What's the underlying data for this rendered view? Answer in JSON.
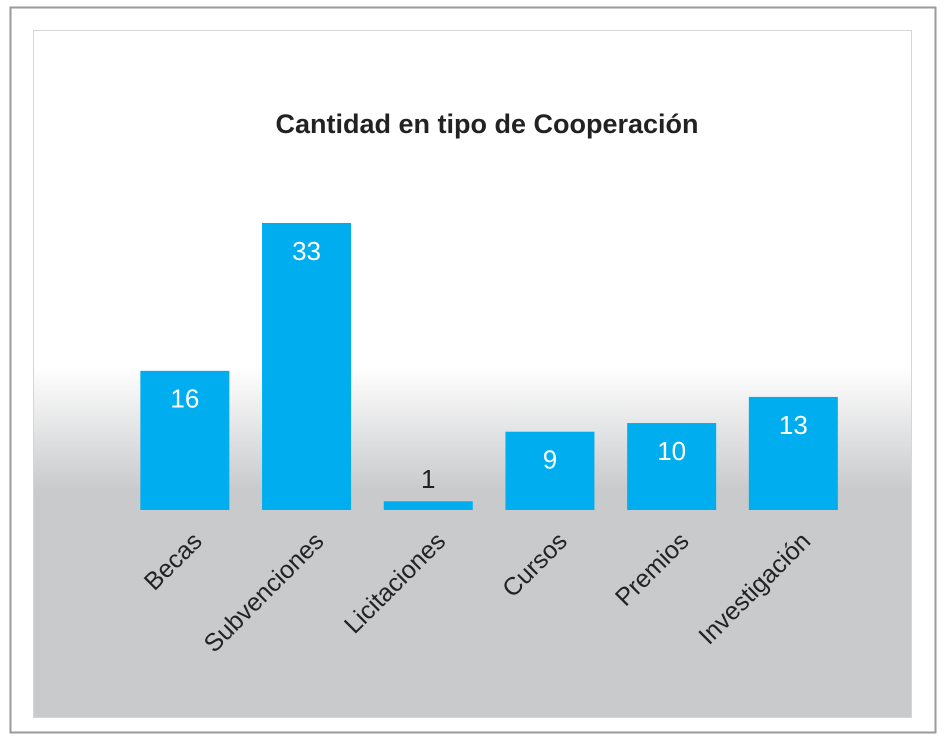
{
  "chart_data": {
    "type": "bar",
    "title": "Cantidad en tipo de Cooperación",
    "categories": [
      "Becas",
      "Subvenciones",
      "Licitaciones",
      "Cursos",
      "Premios",
      "Investigación"
    ],
    "values": [
      16,
      33,
      1,
      9,
      10,
      13
    ],
    "color": "#00aeef"
  }
}
